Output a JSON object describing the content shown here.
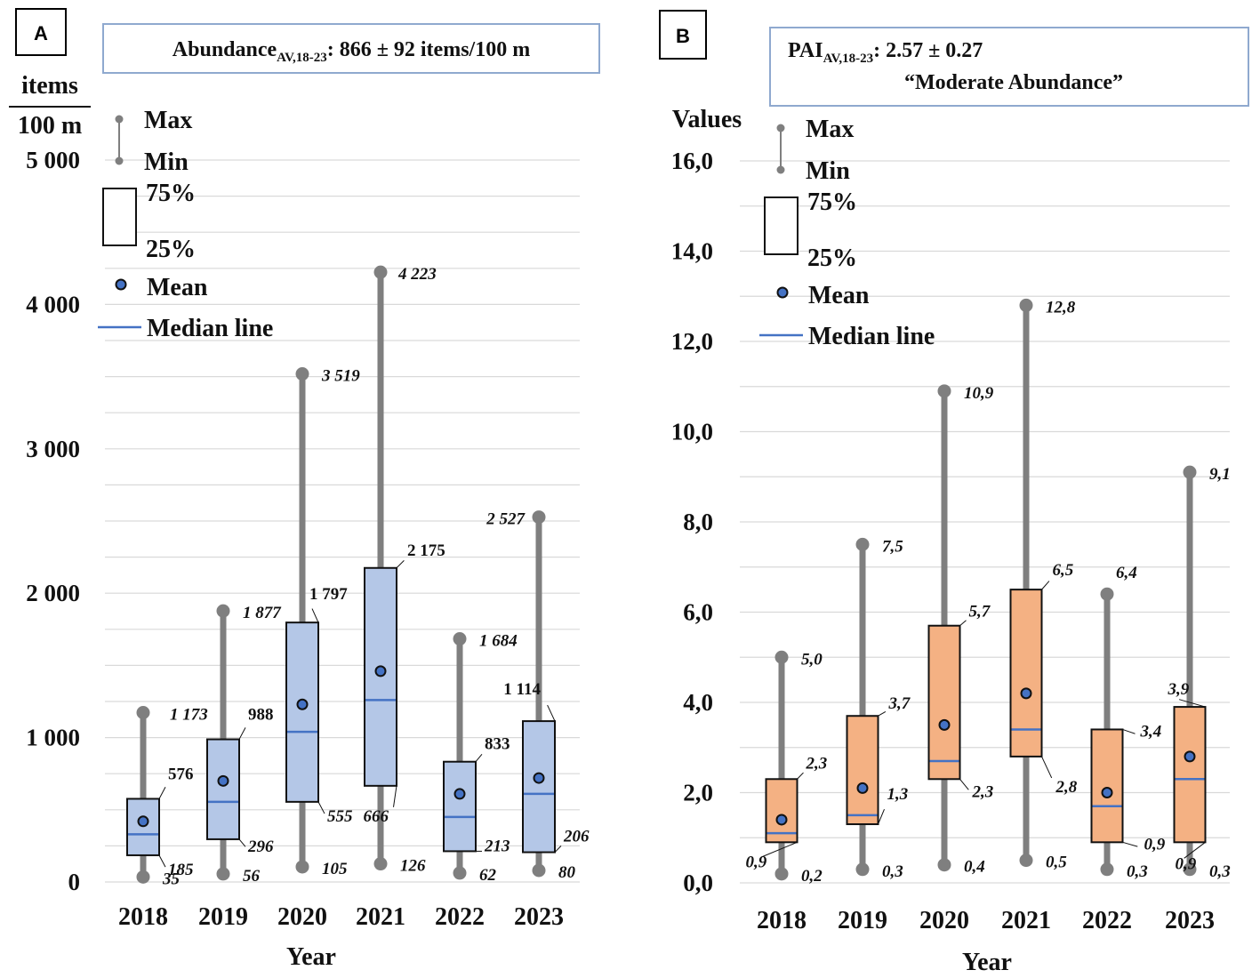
{
  "colors": {
    "box_a": "#b4c7e7",
    "box_b": "#f4b183",
    "whisker": "#7f7f7f",
    "median": "#4472c4",
    "mean": "#4472c4",
    "grid": "#d9d9d9",
    "header_border": "#8fa9cf"
  },
  "legend": {
    "max": "Max",
    "min": "Min",
    "q75": "75%",
    "q25": "25%",
    "mean": "Mean",
    "median": "Median line"
  },
  "chart_data": [
    {
      "type": "box",
      "panel": "A",
      "header": {
        "main": "Abundance",
        "sub": "AV,18-23",
        "rest": ": 866 ± 92 items/100 m"
      },
      "ylabel_top": "items",
      "ylabel_bottom": "100 m",
      "xlabel": "Year",
      "ylim": [
        0,
        5000
      ],
      "yticks": [
        0,
        1000,
        2000,
        3000,
        4000,
        5000
      ],
      "ytick_labels": [
        "0",
        "1 000",
        "2 000",
        "3 000",
        "4 000",
        "5 000"
      ],
      "grid_step": 250,
      "categories": [
        "2018",
        "2019",
        "2020",
        "2021",
        "2022",
        "2023"
      ],
      "min": [
        35,
        56,
        105,
        126,
        62,
        80
      ],
      "q1": [
        185,
        296,
        555,
        666,
        213,
        206
      ],
      "median": [
        330,
        555,
        1040,
        1260,
        450,
        610
      ],
      "mean": [
        420,
        700,
        1230,
        1460,
        610,
        720
      ],
      "q3": [
        576,
        988,
        1797,
        2175,
        833,
        1114
      ],
      "max": [
        1173,
        1877,
        3519,
        4223,
        1684,
        2527
      ],
      "labels": {
        "min": [
          "35",
          "56",
          "105",
          "126",
          "62",
          "80"
        ],
        "q1": [
          "185",
          "296",
          "555",
          "666",
          "213",
          "206"
        ],
        "q3": [
          "576",
          "988",
          "1 797",
          "2 175",
          "833",
          "1 114"
        ],
        "max": [
          "1 173",
          "1 877",
          "3 519",
          "4 223",
          "1 684",
          "2 527"
        ]
      }
    },
    {
      "type": "box",
      "panel": "B",
      "header": {
        "main": "PAI",
        "sub": "AV,18-23",
        "rest": ": 2.57 ± 0.27",
        "line2": "“Moderate Abundance”"
      },
      "ylabel_top": "Values",
      "xlabel": "Year",
      "ylim": [
        0,
        16
      ],
      "yticks": [
        0,
        2,
        4,
        6,
        8,
        10,
        12,
        14,
        16
      ],
      "ytick_labels": [
        "0,0",
        "2,0",
        "4,0",
        "6,0",
        "8,0",
        "10,0",
        "12,0",
        "14,0",
        "16,0"
      ],
      "grid_step": 1,
      "categories": [
        "2018",
        "2019",
        "2020",
        "2021",
        "2022",
        "2023"
      ],
      "min": [
        0.2,
        0.3,
        0.4,
        0.5,
        0.3,
        0.3
      ],
      "q1": [
        0.9,
        1.3,
        2.3,
        2.8,
        0.9,
        0.9
      ],
      "median": [
        1.1,
        1.5,
        2.7,
        3.4,
        1.7,
        2.3
      ],
      "mean": [
        1.4,
        2.1,
        3.5,
        4.2,
        2.0,
        2.8
      ],
      "q3": [
        2.3,
        3.7,
        5.7,
        6.5,
        3.4,
        3.9
      ],
      "max": [
        5.0,
        7.5,
        10.9,
        12.8,
        6.4,
        9.1
      ],
      "labels": {
        "min": [
          "0,2",
          "0,3",
          "0,4",
          "0,5",
          "0,3",
          "0,3"
        ],
        "q1": [
          "0,9",
          "1,3",
          "2,3",
          "2,8",
          "0,9",
          "0,9"
        ],
        "q3": [
          "2,3",
          "3,7",
          "5,7",
          "6,5",
          "3,4",
          "3,9"
        ],
        "max": [
          "5,0",
          "7,5",
          "10,9",
          "12,8",
          "6,4",
          "9,1"
        ]
      }
    }
  ]
}
